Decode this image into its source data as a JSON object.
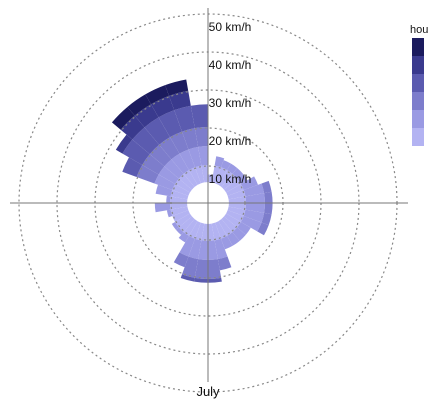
{
  "chart_data": {
    "type": "polar-stacked-bar",
    "title": "",
    "month_label": "July",
    "radial_axis": {
      "unit": "km/h",
      "ticks": [
        10,
        20,
        30,
        40,
        50
      ],
      "tick_labels": [
        "10 km/h",
        "20 km/h",
        "30 km/h",
        "40 km/h",
        "50 km/h"
      ],
      "gridlines": "dotted",
      "hole_radius": 5.5,
      "max": 50
    },
    "direction_bins": 36,
    "directions_deg": [
      0,
      10,
      20,
      30,
      40,
      50,
      60,
      70,
      80,
      90,
      100,
      110,
      120,
      130,
      140,
      150,
      160,
      170,
      180,
      190,
      200,
      210,
      220,
      230,
      240,
      250,
      260,
      270,
      280,
      290,
      300,
      310,
      320,
      330,
      340,
      350
    ],
    "band_edges": [
      5.5,
      10,
      15,
      20,
      26,
      30,
      33
    ],
    "band_colors": [
      "#b3b3f2",
      "#9a9ae3",
      "#7d7dcc",
      "#5b5bb0",
      "#3a3a8e",
      "#1b1b5e"
    ],
    "bars": [
      {
        "dir": 0,
        "top": 7.5
      },
      {
        "dir": 10,
        "top": 12.5
      },
      {
        "dir": 20,
        "top": 12
      },
      {
        "dir": 30,
        "top": 12
      },
      {
        "dir": 40,
        "top": 12
      },
      {
        "dir": 50,
        "top": 12
      },
      {
        "dir": 60,
        "top": 14
      },
      {
        "dir": 70,
        "top": 17
      },
      {
        "dir": 80,
        "top": 17
      },
      {
        "dir": 90,
        "top": 17
      },
      {
        "dir": 100,
        "top": 17
      },
      {
        "dir": 110,
        "top": 17
      },
      {
        "dir": 120,
        "top": 13
      },
      {
        "dir": 130,
        "top": 13
      },
      {
        "dir": 140,
        "top": 13
      },
      {
        "dir": 150,
        "top": 13
      },
      {
        "dir": 160,
        "top": 18
      },
      {
        "dir": 170,
        "top": 21
      },
      {
        "dir": 180,
        "top": 21
      },
      {
        "dir": 190,
        "top": 21
      },
      {
        "dir": 200,
        "top": 18
      },
      {
        "dir": 210,
        "top": 12
      },
      {
        "dir": 220,
        "top": 11
      },
      {
        "dir": 230,
        "top": 11
      },
      {
        "dir": 240,
        "top": 10
      },
      {
        "dir": 250,
        "top": 11
      },
      {
        "dir": 260,
        "top": 14
      },
      {
        "dir": 270,
        "top": 11
      },
      {
        "dir": 280,
        "top": 14
      },
      {
        "dir": 290,
        "top": 24
      },
      {
        "dir": 300,
        "top": 28
      },
      {
        "dir": 310,
        "top": 33
      },
      {
        "dir": 320,
        "top": 33
      },
      {
        "dir": 330,
        "top": 33
      },
      {
        "dir": 340,
        "top": 33
      },
      {
        "dir": 350,
        "top": 26
      }
    ],
    "legend": {
      "title": "hou",
      "placement": "right",
      "colors": [
        "#1b1b5e",
        "#3a3a8e",
        "#5b5bb0",
        "#7d7dcc",
        "#9a9ae3",
        "#b3b3f2"
      ]
    }
  }
}
